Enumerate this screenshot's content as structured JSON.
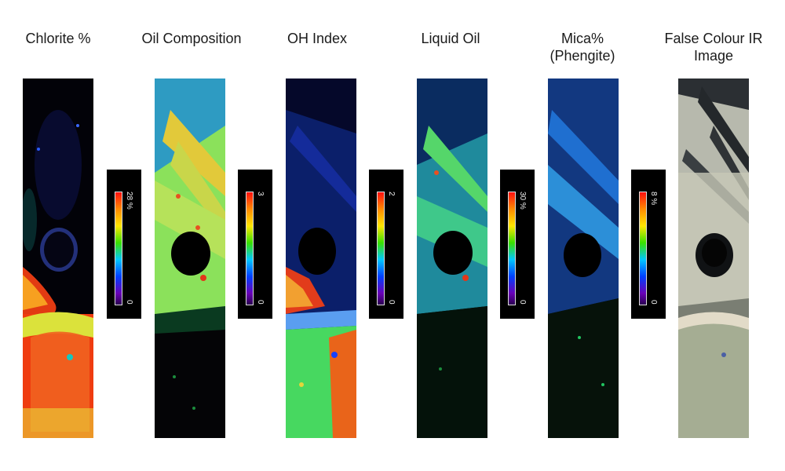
{
  "panels": [
    {
      "id": "chlorite",
      "title": "Chlorite %"
    },
    {
      "id": "oil",
      "title": "Oil Composition"
    },
    {
      "id": "oh",
      "title": "OH Index"
    },
    {
      "id": "liquid",
      "title": "Liquid Oil"
    },
    {
      "id": "mica",
      "title": "Mica% (Phengite)"
    },
    {
      "id": "ir",
      "title": "False Colour IR Image"
    }
  ],
  "scales": [
    {
      "max": "28 %",
      "min": "0"
    },
    {
      "max": "3",
      "min": "0"
    },
    {
      "max": "2",
      "min": "0"
    },
    {
      "max": "30 %",
      "min": "0"
    },
    {
      "max": "8 %",
      "min": "0"
    }
  ]
}
